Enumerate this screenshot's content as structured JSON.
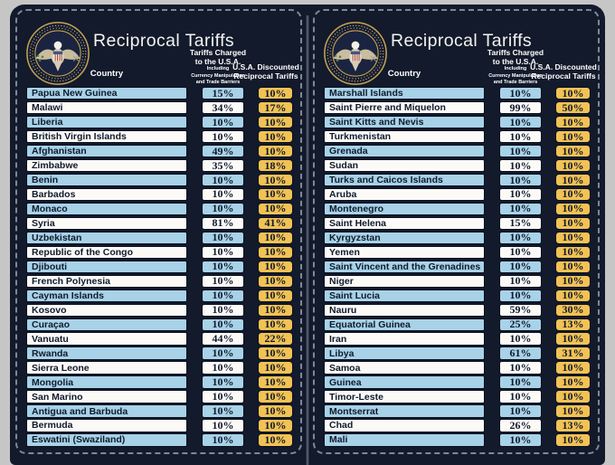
{
  "header": {
    "title": "Reciprocal Tariffs",
    "country_label": "Country",
    "charged_line1": "Tariffs Charged",
    "charged_line2": "to the U.S.A.",
    "charged_sub1": "Including",
    "charged_sub2": "Currency Manipulation",
    "charged_sub3": "and Trade Barriers",
    "discounted_line1": "U.S.A. Discounted",
    "discounted_line2": "Reciprocal Tariffs"
  },
  "icons": {
    "seal": "presidential-seal-icon"
  },
  "colors": {
    "background_gray": "#c6c6c6",
    "board_navy": "#121a2b",
    "row_blue": "#a8d2e7",
    "row_white": "#fbfaf7",
    "gold": "#f2c255",
    "cell_border": "#0b1120",
    "dashed_border": "#7f8899",
    "header_text": "#ffffff"
  },
  "chart_data": [
    {
      "type": "table",
      "title": "Reciprocal Tariffs",
      "columns": [
        "Country",
        "Tariffs Charged to the U.S.A. Including Currency Manipulation and Trade Barriers",
        "U.S.A. Discounted Reciprocal Tariffs"
      ],
      "rows": [
        [
          "Papua New Guinea",
          "15%",
          "10%"
        ],
        [
          "Malawi",
          "34%",
          "17%"
        ],
        [
          "Liberia",
          "10%",
          "10%"
        ],
        [
          "British Virgin Islands",
          "10%",
          "10%"
        ],
        [
          "Afghanistan",
          "49%",
          "10%"
        ],
        [
          "Zimbabwe",
          "35%",
          "18%"
        ],
        [
          "Benin",
          "10%",
          "10%"
        ],
        [
          "Barbados",
          "10%",
          "10%"
        ],
        [
          "Monaco",
          "10%",
          "10%"
        ],
        [
          "Syria",
          "81%",
          "41%"
        ],
        [
          "Uzbekistan",
          "10%",
          "10%"
        ],
        [
          "Republic of the Congo",
          "10%",
          "10%"
        ],
        [
          "Djibouti",
          "10%",
          "10%"
        ],
        [
          "French Polynesia",
          "10%",
          "10%"
        ],
        [
          "Cayman Islands",
          "10%",
          "10%"
        ],
        [
          "Kosovo",
          "10%",
          "10%"
        ],
        [
          "Curaçao",
          "10%",
          "10%"
        ],
        [
          "Vanuatu",
          "44%",
          "22%"
        ],
        [
          "Rwanda",
          "10%",
          "10%"
        ],
        [
          "Sierra Leone",
          "10%",
          "10%"
        ],
        [
          "Mongolia",
          "10%",
          "10%"
        ],
        [
          "San Marino",
          "10%",
          "10%"
        ],
        [
          "Antigua and Barbuda",
          "10%",
          "10%"
        ],
        [
          "Bermuda",
          "10%",
          "10%"
        ],
        [
          "Eswatini (Swaziland)",
          "10%",
          "10%"
        ]
      ]
    },
    {
      "type": "table",
      "title": "Reciprocal Tariffs",
      "columns": [
        "Country",
        "Tariffs Charged to the U.S.A. Including Currency Manipulation and Trade Barriers",
        "U.S.A. Discounted Reciprocal Tariffs"
      ],
      "rows": [
        [
          "Marshall Islands",
          "10%",
          "10%"
        ],
        [
          "Saint Pierre and Miquelon",
          "99%",
          "50%"
        ],
        [
          "Saint Kitts and Nevis",
          "10%",
          "10%"
        ],
        [
          "Turkmenistan",
          "10%",
          "10%"
        ],
        [
          "Grenada",
          "10%",
          "10%"
        ],
        [
          "Sudan",
          "10%",
          "10%"
        ],
        [
          "Turks and Caicos Islands",
          "10%",
          "10%"
        ],
        [
          "Aruba",
          "10%",
          "10%"
        ],
        [
          "Montenegro",
          "10%",
          "10%"
        ],
        [
          "Saint Helena",
          "15%",
          "10%"
        ],
        [
          "Kyrgyzstan",
          "10%",
          "10%"
        ],
        [
          "Yemen",
          "10%",
          "10%"
        ],
        [
          "Saint Vincent and the Grenadines",
          "10%",
          "10%"
        ],
        [
          "Niger",
          "10%",
          "10%"
        ],
        [
          "Saint Lucia",
          "10%",
          "10%"
        ],
        [
          "Nauru",
          "59%",
          "30%"
        ],
        [
          "Equatorial Guinea",
          "25%",
          "13%"
        ],
        [
          "Iran",
          "10%",
          "10%"
        ],
        [
          "Libya",
          "61%",
          "31%"
        ],
        [
          "Samoa",
          "10%",
          "10%"
        ],
        [
          "Guinea",
          "10%",
          "10%"
        ],
        [
          "Timor-Leste",
          "10%",
          "10%"
        ],
        [
          "Montserrat",
          "10%",
          "10%"
        ],
        [
          "Chad",
          "26%",
          "13%"
        ],
        [
          "Mali",
          "10%",
          "10%"
        ]
      ]
    }
  ]
}
